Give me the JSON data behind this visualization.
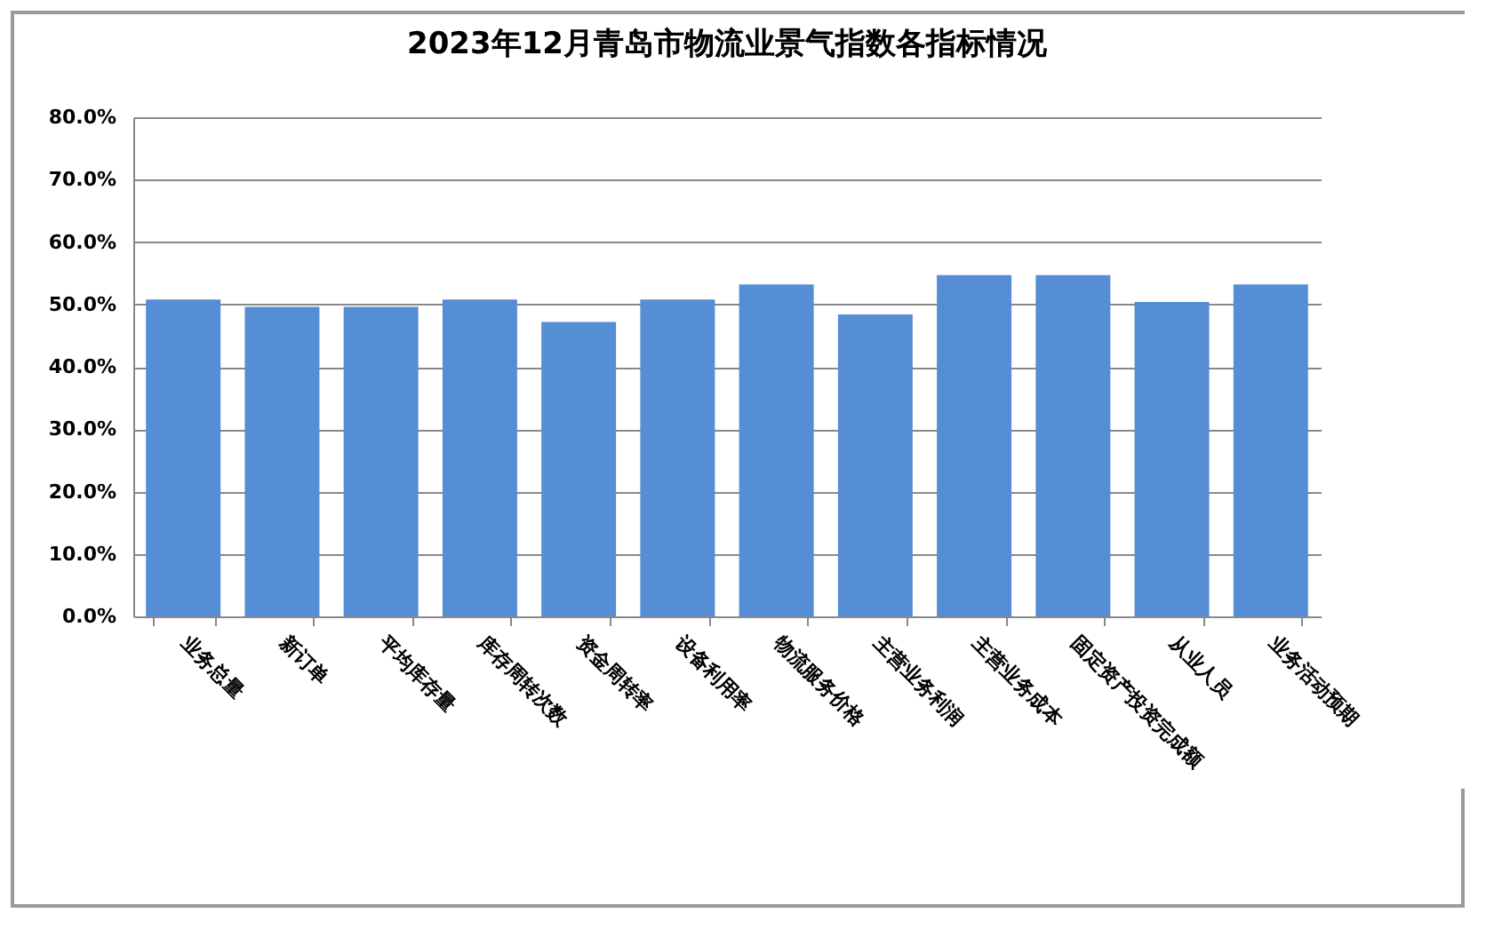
{
  "chart_data": {
    "type": "bar",
    "title": "2023年12月青岛市物流业景气指数各指标情况",
    "categories": [
      "业务总量",
      "新订单",
      "平均库存量",
      "库存周转次数",
      "资金周转率",
      "设备利用率",
      "物流服务价格",
      "主营业务利润",
      "主营业务成本",
      "固定资产投资完成额",
      "从业人员",
      "业务活动预期"
    ],
    "values": [
      50.8,
      49.6,
      49.6,
      50.8,
      47.2,
      50.8,
      53.2,
      48.4,
      54.7,
      54.7,
      50.4,
      53.2
    ],
    "color": "#558ed5",
    "ylim": [
      0,
      80
    ],
    "yticks": [
      {
        "value": 0,
        "label": "0.0%"
      },
      {
        "value": 10,
        "label": "10.0%"
      },
      {
        "value": 20,
        "label": "20.0%"
      },
      {
        "value": 30,
        "label": "30.0%"
      },
      {
        "value": 40,
        "label": "40.0%"
      },
      {
        "value": 50,
        "label": "50.0%"
      },
      {
        "value": 60,
        "label": "60.0%"
      },
      {
        "value": 70,
        "label": "70.0%"
      },
      {
        "value": 80,
        "label": "80.0%"
      }
    ],
    "grid": "y"
  }
}
